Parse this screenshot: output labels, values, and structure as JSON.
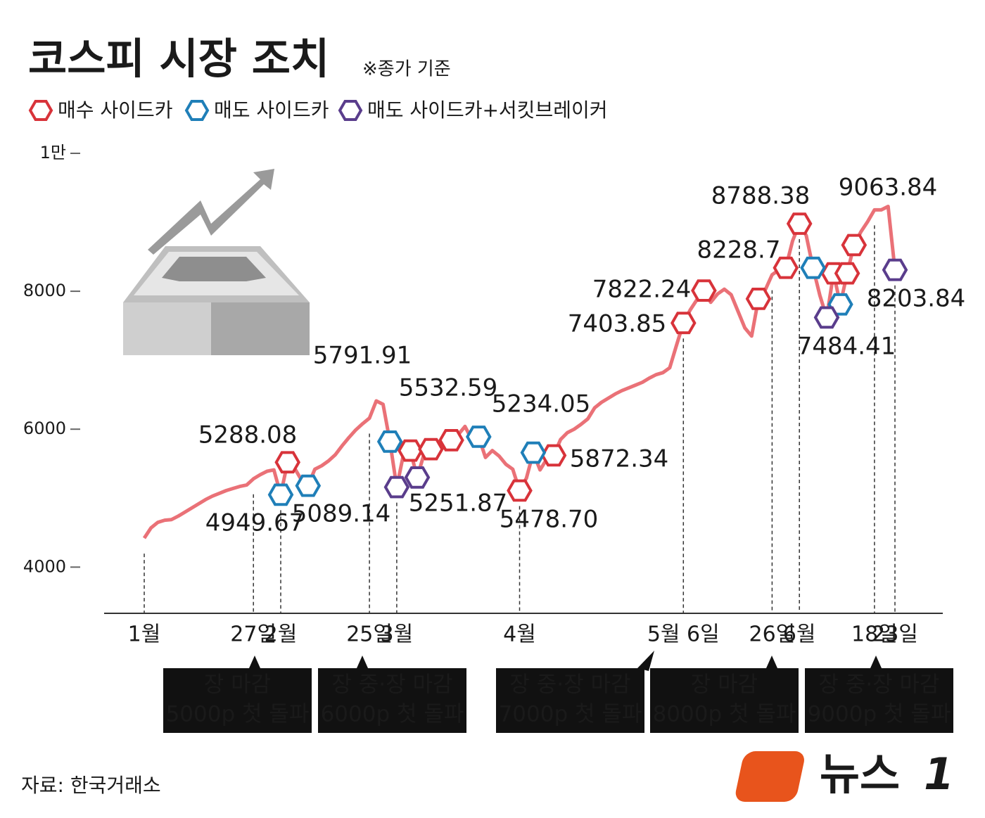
{
  "chart_data": {
    "type": "line",
    "title": "코스피 시장 조치",
    "subtitle": "※종가 기준",
    "categories": [
      "1월",
      null,
      null,
      null,
      null,
      null,
      null,
      null,
      null,
      null,
      null,
      null,
      null,
      null,
      null,
      null,
      "27일",
      null,
      null,
      null,
      "2월",
      null,
      null,
      null,
      null,
      null,
      null,
      null,
      null,
      null,
      null,
      null,
      null,
      "25일",
      null,
      null,
      null,
      "3월",
      null,
      null,
      null,
      null,
      null,
      null,
      null,
      null,
      null,
      null,
      null,
      null,
      null,
      null,
      null,
      null,
      null,
      "4월",
      null,
      null,
      null,
      null,
      null,
      null,
      null,
      null,
      null,
      null,
      null,
      null,
      null,
      null,
      null,
      null,
      null,
      null,
      null,
      null,
      null,
      null,
      null,
      "5월 6일",
      null,
      null,
      null,
      null,
      null,
      null,
      null,
      null,
      null,
      null,
      null,
      null,
      "26일",
      null,
      null,
      null,
      "6월",
      null,
      null,
      null,
      null,
      null,
      null,
      null,
      null,
      null,
      null,
      "18일",
      null,
      null,
      "23일"
    ],
    "line": {
      "color": "#ea7177",
      "values": [
        4420,
        4570,
        4650,
        4680,
        4690,
        4740,
        4800,
        4860,
        4920,
        4980,
        5030,
        5070,
        5110,
        5140,
        5170,
        5190,
        5280,
        5340,
        5390,
        5410,
        5050,
        5520,
        5440,
        5270,
        5180,
        5420,
        5470,
        5540,
        5630,
        5760,
        5880,
        5990,
        6080,
        6160,
        6410,
        6360,
        5820,
        5160,
        5640,
        5690,
        5300,
        5640,
        5710,
        5780,
        5810,
        5840,
        5920,
        6040,
        5850,
        5890,
        5590,
        5690,
        5610,
        5490,
        5420,
        5110,
        5290,
        5660,
        5410,
        5570,
        5620,
        5850,
        5950,
        6000,
        6070,
        6150,
        6310,
        6390,
        6450,
        6510,
        6560,
        6600,
        6640,
        6680,
        6740,
        6790,
        6820,
        6890,
        7220,
        7540,
        7730,
        7880,
        8010,
        7840,
        7960,
        8030,
        7950,
        7710,
        7470,
        7350,
        7890,
        8020,
        8240,
        8310,
        8340,
        8730,
        8980,
        8810,
        8340,
        7940,
        7620,
        8260,
        7810,
        8260,
        8670,
        8860,
        9010,
        9180,
        9180,
        9230,
        8310
      ]
    },
    "series": [
      {
        "name": "매수 사이드카",
        "color": "#d8333a",
        "values": [
          null,
          null,
          null,
          null,
          null,
          null,
          null,
          null,
          null,
          null,
          null,
          null,
          null,
          null,
          null,
          null,
          null,
          null,
          null,
          null,
          null,
          5520,
          null,
          null,
          null,
          null,
          null,
          null,
          null,
          null,
          null,
          null,
          null,
          null,
          null,
          null,
          null,
          null,
          null,
          5690,
          null,
          null,
          5710,
          null,
          null,
          5840,
          null,
          null,
          null,
          null,
          null,
          null,
          null,
          null,
          null,
          5110,
          null,
          null,
          null,
          null,
          5620,
          null,
          null,
          null,
          null,
          null,
          null,
          null,
          null,
          null,
          null,
          null,
          null,
          null,
          null,
          null,
          null,
          null,
          null,
          7540,
          null,
          null,
          8010,
          null,
          null,
          null,
          null,
          null,
          null,
          null,
          7890,
          null,
          null,
          null,
          8340,
          null,
          8980,
          null,
          null,
          null,
          null,
          8260,
          null,
          8260,
          8670,
          null,
          null,
          null,
          null,
          null,
          null
        ]
      },
      {
        "name": "매도 사이드카",
        "color": "#1f7fb8",
        "values": [
          null,
          null,
          null,
          null,
          null,
          null,
          null,
          null,
          null,
          null,
          null,
          null,
          null,
          null,
          null,
          null,
          null,
          null,
          null,
          null,
          5050,
          null,
          null,
          null,
          5180,
          null,
          null,
          null,
          null,
          null,
          null,
          null,
          null,
          null,
          null,
          null,
          5820,
          null,
          null,
          null,
          null,
          null,
          null,
          null,
          null,
          null,
          null,
          null,
          null,
          5890,
          null,
          null,
          null,
          null,
          null,
          null,
          null,
          5660,
          null,
          null,
          null,
          null,
          null,
          null,
          null,
          null,
          null,
          null,
          null,
          null,
          null,
          null,
          null,
          null,
          null,
          null,
          null,
          null,
          null,
          null,
          null,
          null,
          null,
          null,
          null,
          null,
          null,
          null,
          null,
          null,
          null,
          null,
          null,
          null,
          null,
          null,
          null,
          null,
          8340,
          null,
          null,
          null,
          7810,
          null,
          null,
          null,
          null,
          null,
          null,
          null,
          null
        ]
      },
      {
        "name": "매도 사이드카+서킷브레이커",
        "color": "#5a3d8c",
        "values": [
          null,
          null,
          null,
          null,
          null,
          null,
          null,
          null,
          null,
          null,
          null,
          null,
          null,
          null,
          null,
          null,
          null,
          null,
          null,
          null,
          null,
          null,
          null,
          null,
          null,
          null,
          null,
          null,
          null,
          null,
          null,
          null,
          null,
          null,
          null,
          null,
          null,
          5160,
          null,
          null,
          5300,
          null,
          null,
          null,
          null,
          null,
          null,
          null,
          null,
          null,
          null,
          null,
          null,
          null,
          null,
          null,
          null,
          null,
          null,
          null,
          null,
          null,
          null,
          null,
          null,
          null,
          null,
          null,
          null,
          null,
          null,
          null,
          null,
          null,
          null,
          null,
          null,
          null,
          null,
          null,
          null,
          null,
          null,
          null,
          null,
          null,
          null,
          null,
          null,
          null,
          null,
          null,
          null,
          null,
          null,
          null,
          null,
          null,
          null,
          null,
          7620,
          null,
          null,
          null,
          null,
          null,
          null,
          null,
          null,
          null,
          8310
        ]
      }
    ],
    "annotations": [
      "5288.08",
      "4949.67",
      "5089.14",
      "5791.91",
      "5532.59",
      "5251.87",
      "5234.05",
      "5478.70",
      "5872.34",
      "7822.24",
      "7403.85",
      "8228.7",
      "8788.38",
      "9063.84",
      "8203.84",
      "7484.41"
    ],
    "callouts": [
      [
        "장 마감",
        "5000p 첫 돌파"
      ],
      [
        "장 중·장 마감",
        "6000p 첫 돌파"
      ],
      [
        "장 중·장 마감",
        "7000p 첫 돌파"
      ],
      [
        "장 마감",
        "8000p 첫 돌파"
      ],
      [
        "장 중·장 마감",
        "9000p 첫 돌파"
      ]
    ],
    "ylim": [
      3330,
      10000
    ],
    "yticks": [
      4000,
      6000,
      8000,
      {
        "value": 10000,
        "label": "1만"
      }
    ],
    "source": "자료: 한국거래소",
    "logo": [
      "뉴스",
      "1"
    ]
  }
}
